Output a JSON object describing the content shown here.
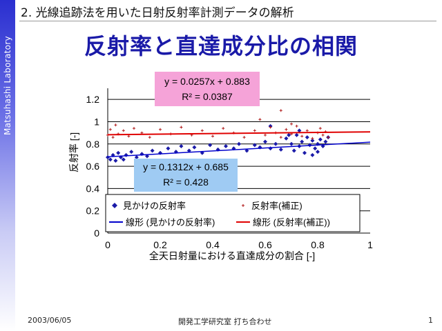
{
  "slide": {
    "section_title": "2. 光線追跡法を用いた日射反射率計測データの解析",
    "title": "反射率と直達成分比の相関",
    "side_label": "Matsuhashi Laboratory",
    "footer_date": "2003/06/05",
    "footer_center": "開発工学研究室 打ち合わせ",
    "footer_page": "1"
  },
  "colors": {
    "title": "#1a1aa8",
    "series_apparent": "#1a1aa8",
    "series_corrected": "#b01818",
    "trend_apparent": "#0000cc",
    "trend_corrected": "#e00000",
    "eq_box_corrected": "#f5a3d8",
    "eq_box_apparent": "#9fcbf3"
  },
  "chart_data": {
    "type": "scatter",
    "xlabel": "全天日射量における直達成分の割合 [-]",
    "ylabel": "反射率 [-]",
    "xlim": [
      0,
      1
    ],
    "ylim": [
      0,
      1.3
    ],
    "x_ticks": [
      "0",
      "0.2",
      "0.4",
      "0.6",
      "0.8",
      "1"
    ],
    "y_ticks": [
      "0",
      "0.2",
      "0.4",
      "0.6",
      "0.8",
      "1",
      "1.2"
    ],
    "grid": "horizontal",
    "legend_position": "bottom inside plot",
    "series": [
      {
        "name": "見かけの反射率",
        "marker": "diamond",
        "points": [
          [
            0.0,
            0.68
          ],
          [
            0.01,
            0.66
          ],
          [
            0.02,
            0.7
          ],
          [
            0.03,
            0.65
          ],
          [
            0.04,
            0.72
          ],
          [
            0.05,
            0.68
          ],
          [
            0.06,
            0.66
          ],
          [
            0.07,
            0.7
          ],
          [
            0.09,
            0.73
          ],
          [
            0.11,
            0.68
          ],
          [
            0.13,
            0.71
          ],
          [
            0.15,
            0.69
          ],
          [
            0.17,
            0.74
          ],
          [
            0.2,
            0.72
          ],
          [
            0.23,
            0.76
          ],
          [
            0.26,
            0.73
          ],
          [
            0.28,
            0.78
          ],
          [
            0.31,
            0.74
          ],
          [
            0.33,
            0.77
          ],
          [
            0.36,
            0.72
          ],
          [
            0.39,
            0.79
          ],
          [
            0.42,
            0.75
          ],
          [
            0.45,
            0.78
          ],
          [
            0.48,
            0.76
          ],
          [
            0.5,
            0.8
          ],
          [
            0.53,
            0.74
          ],
          [
            0.56,
            0.79
          ],
          [
            0.58,
            0.77
          ],
          [
            0.6,
            0.82
          ],
          [
            0.62,
            0.76
          ],
          [
            0.64,
            0.8
          ],
          [
            0.66,
            0.75
          ],
          [
            0.68,
            0.85
          ],
          [
            0.7,
            0.8
          ],
          [
            0.71,
            0.74
          ],
          [
            0.72,
            0.88
          ],
          [
            0.73,
            0.78
          ],
          [
            0.74,
            0.82
          ],
          [
            0.75,
            0.72
          ],
          [
            0.76,
            0.86
          ],
          [
            0.77,
            0.79
          ],
          [
            0.78,
            0.83
          ],
          [
            0.79,
            0.76
          ],
          [
            0.8,
            0.8
          ],
          [
            0.81,
            0.84
          ],
          [
            0.82,
            0.78
          ],
          [
            0.83,
            0.82
          ],
          [
            0.84,
            0.86
          ],
          [
            0.8,
            0.73
          ],
          [
            0.78,
            0.7
          ],
          [
            0.73,
            0.92
          ],
          [
            0.69,
            0.88
          ],
          [
            0.62,
            0.96
          ]
        ]
      },
      {
        "name": "反射率(補正)",
        "marker": "plus",
        "points": [
          [
            0.0,
            0.88
          ],
          [
            0.01,
            0.93
          ],
          [
            0.02,
            0.86
          ],
          [
            0.03,
            0.97
          ],
          [
            0.04,
            0.89
          ],
          [
            0.06,
            0.92
          ],
          [
            0.08,
            0.87
          ],
          [
            0.1,
            0.94
          ],
          [
            0.13,
            0.9
          ],
          [
            0.16,
            0.86
          ],
          [
            0.2,
            0.93
          ],
          [
            0.24,
            0.89
          ],
          [
            0.28,
            0.95
          ],
          [
            0.32,
            0.88
          ],
          [
            0.36,
            0.92
          ],
          [
            0.4,
            0.87
          ],
          [
            0.44,
            0.94
          ],
          [
            0.48,
            0.9
          ],
          [
            0.52,
            0.86
          ],
          [
            0.56,
            0.92
          ],
          [
            0.6,
            0.88
          ],
          [
            0.62,
            0.95
          ],
          [
            0.64,
            0.9
          ],
          [
            0.66,
            0.86
          ],
          [
            0.68,
            0.93
          ],
          [
            0.7,
            0.89
          ],
          [
            0.72,
            0.96
          ],
          [
            0.74,
            0.87
          ],
          [
            0.76,
            0.92
          ],
          [
            0.78,
            0.85
          ],
          [
            0.8,
            0.9
          ],
          [
            0.81,
            0.94
          ],
          [
            0.82,
            0.88
          ],
          [
            0.83,
            0.91
          ],
          [
            0.84,
            0.86
          ],
          [
            0.58,
            1.02
          ],
          [
            0.66,
            1.1
          ],
          [
            0.7,
            0.98
          ]
        ]
      }
    ],
    "trendlines": [
      {
        "name": "線形 (見かけの反射率)",
        "slope": 0.1312,
        "intercept": 0.685,
        "equation": "y = 0.1312x + 0.685",
        "r2": "R² = 0.428"
      },
      {
        "name": "線形 (反射率(補正))",
        "slope": 0.0257,
        "intercept": 0.883,
        "equation": "y = 0.0257x + 0.883",
        "r2": "R² = 0.0387"
      }
    ]
  }
}
